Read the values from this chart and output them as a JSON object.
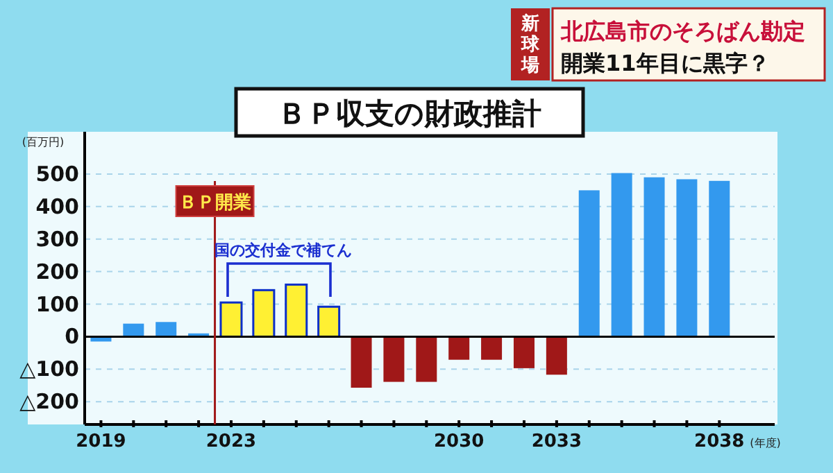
{
  "chart_data": {
    "type": "bar",
    "title": "ＢＰ収支の財政推計",
    "ylabel": "(百万円)",
    "xlabel": "(年度)",
    "annotations": [
      "新球場",
      "北広島市のそろばん勘定",
      "開業11年目に黒字？",
      "国の交付金で補てん"
    ],
    "x": [
      2019,
      2020,
      2021,
      2022,
      2023,
      2024,
      2025,
      2026,
      2027,
      2028,
      2029,
      2030,
      2031,
      2032,
      2033,
      2034,
      2035,
      2036,
      2037,
      2038
    ],
    "values": [
      -15,
      40,
      45,
      10,
      105,
      143,
      160,
      92,
      -157,
      -139,
      -139,
      -71,
      -71,
      -97,
      -117,
      450,
      503,
      490,
      484,
      479
    ],
    "colors": [
      "#3399ee",
      "#3399ee",
      "#3399ee",
      "#3399ee",
      "#fff033",
      "#fff033",
      "#fff033",
      "#fff033",
      "#a01818",
      "#a01818",
      "#a01818",
      "#a01818",
      "#a01818",
      "#a01818",
      "#a01818",
      "#3399ee",
      "#3399ee",
      "#3399ee",
      "#3399ee",
      "#3399ee"
    ],
    "xlim": [
      2018.5,
      2039.7
    ],
    "xticks": [
      2019,
      2023,
      2030,
      2033,
      2038
    ],
    "ylim": [
      -270,
      630
    ],
    "yticks": [
      500,
      400,
      300,
      200,
      100,
      0,
      {
        "value": -100,
        "label": "△100"
      },
      {
        "value": -200,
        "label": "△200"
      }
    ],
    "grid": "y",
    "ref_lines": [
      {
        "axis": "x",
        "value": 2022.5,
        "label": "ＢＰ開業",
        "color": "#a01818"
      }
    ]
  }
}
